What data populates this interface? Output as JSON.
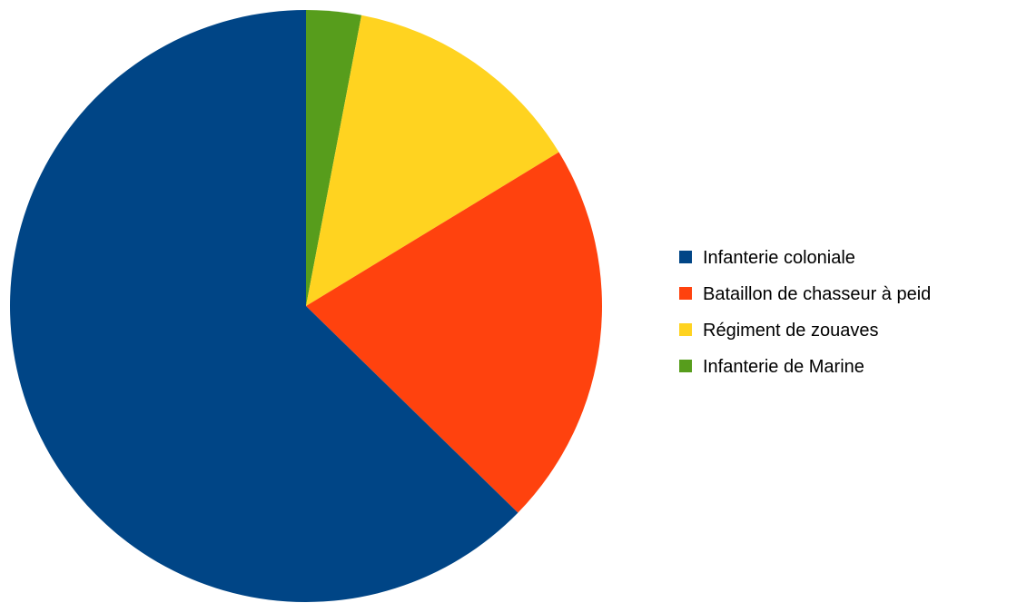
{
  "chart_data": {
    "type": "pie",
    "title": "",
    "categories": [
      "Infanterie coloniale",
      "Bataillon de chasseur à peid",
      "Régiment de zouaves",
      "Infanterie de Marine"
    ],
    "values": [
      62.7,
      21.0,
      13.3,
      3.0
    ],
    "colors": [
      "#004586",
      "#ff420e",
      "#ffd320",
      "#579d1c"
    ],
    "start_angle_deg": 0,
    "direction": "clockwise-from-top, drawn in reverse category order",
    "legend_position": "right",
    "grid": false
  }
}
